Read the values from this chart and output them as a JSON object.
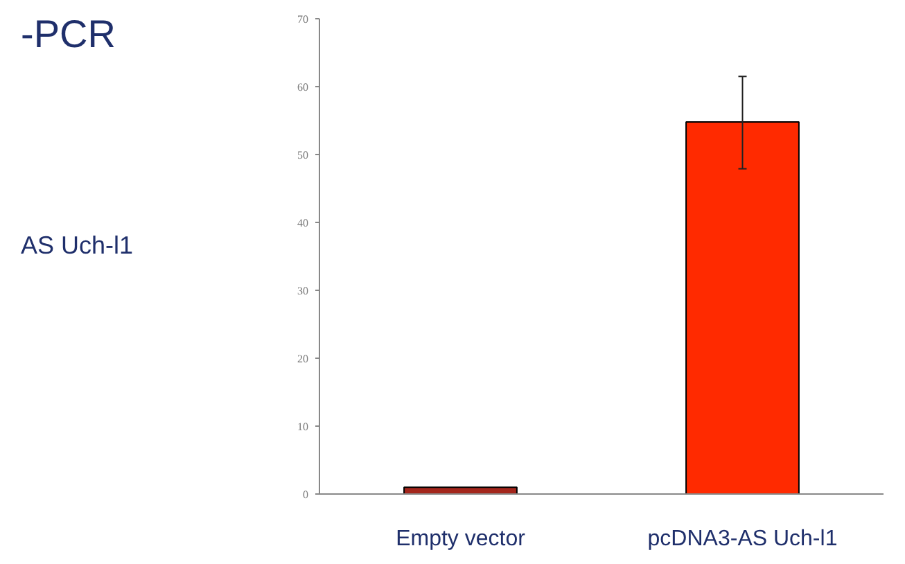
{
  "chart_data": {
    "type": "bar",
    "title": "-PCR",
    "annotations": [
      "AS Uch-l1"
    ],
    "categories": [
      "Empty vector",
      "pcDNA3-AS Uch-l1"
    ],
    "values": [
      1,
      54.8
    ],
    "colors": [
      "#a3261c",
      "#ff2a00"
    ],
    "errors": [
      null,
      [
        47.9,
        61.5
      ]
    ],
    "ylim": [
      0,
      70
    ],
    "yticks": [
      0,
      10,
      20,
      30,
      40,
      50,
      60,
      70
    ],
    "grid": false
  }
}
